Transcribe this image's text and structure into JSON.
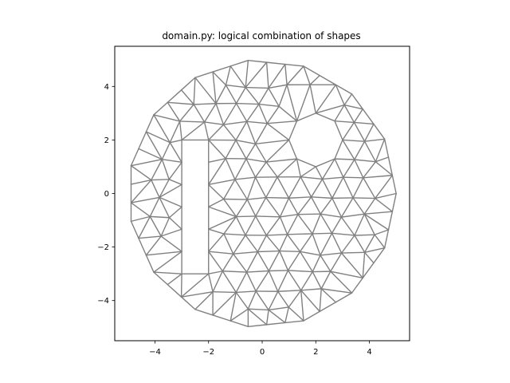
{
  "chart_data": {
    "type": "mesh",
    "title": "domain.py: logical combination of shapes",
    "xlabel": "",
    "ylabel": "",
    "xlim": [
      -5.5,
      5.5
    ],
    "ylim": [
      -5.5,
      5.5
    ],
    "x_ticks": [
      -4,
      -2,
      0,
      2,
      4
    ],
    "y_ticks": [
      -4,
      -2,
      0,
      2,
      4
    ],
    "x_tick_labels": [
      "−4",
      "−2",
      "0",
      "2",
      "4"
    ],
    "y_tick_labels": [
      "−4",
      "−2",
      "0",
      "2",
      "4"
    ],
    "grid": false,
    "edge_color": "#808080",
    "outer_boundary": {
      "shape": "regular-polygon",
      "sides": 15,
      "radius": 5,
      "center": [
        0,
        0
      ]
    },
    "hole_rectangle": {
      "x_range": [
        -3,
        -2
      ],
      "y_range": [
        -3,
        2
      ]
    },
    "hole_circle": {
      "center": [
        2,
        2
      ],
      "radius": 1
    },
    "mesh_spacing": 0.8
  }
}
